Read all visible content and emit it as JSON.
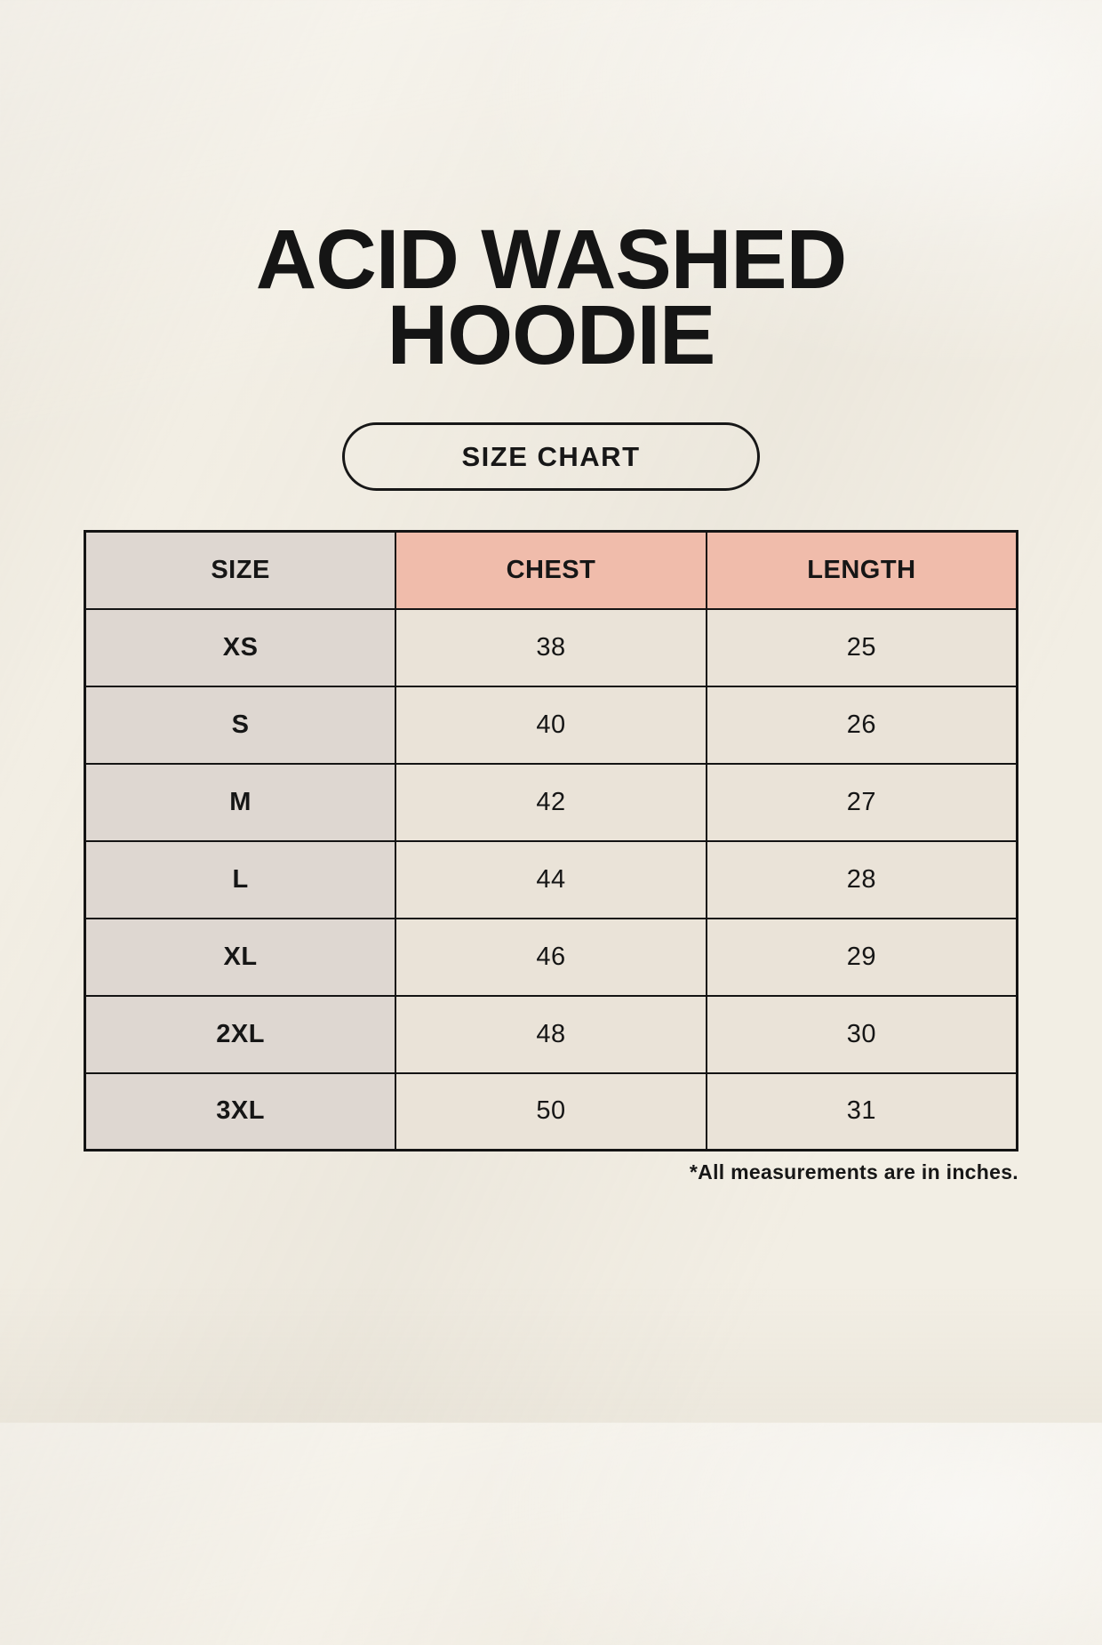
{
  "page": {
    "title_line1": "ACID WASHED",
    "title_line2": "HOODIE",
    "size_chart_button_label": "SIZE CHART",
    "footnote": "*All measurements are in inches."
  },
  "table": {
    "headers": [
      "SIZE",
      "CHEST",
      "LENGTH"
    ],
    "rows": [
      {
        "size": "XS",
        "chest": "38",
        "length": "25"
      },
      {
        "size": "S",
        "chest": "40",
        "length": "26"
      },
      {
        "size": "M",
        "chest": "42",
        "length": "27"
      },
      {
        "size": "L",
        "chest": "44",
        "length": "28"
      },
      {
        "size": "XL",
        "chest": "46",
        "length": "29"
      },
      {
        "size": "2XL",
        "chest": "48",
        "length": "30"
      },
      {
        "size": "3XL",
        "chest": "50",
        "length": "31"
      }
    ],
    "units_note": "inches"
  },
  "colors": {
    "background": "#f2eee4",
    "label_column_bg": "#ded7d1",
    "measure_header_bg": "#f0bcab",
    "data_cell_bg": "#eae3d8",
    "border": "#141414",
    "text": "#161616"
  }
}
